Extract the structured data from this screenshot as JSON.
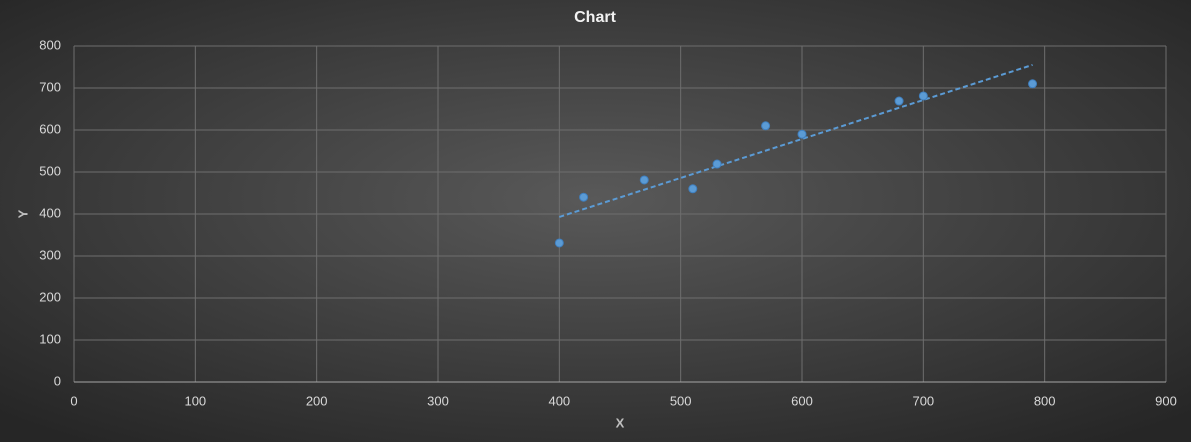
{
  "chart_data": {
    "type": "scatter",
    "title": "Chart",
    "x_label": "X",
    "y_label": "Y",
    "x": [
      400,
      420,
      470,
      510,
      530,
      570,
      600,
      680,
      700,
      790
    ],
    "series": [
      {
        "color": "#5b9bd5",
        "values": [
          331,
          440,
          481,
          460,
          519,
          610,
          590,
          669,
          681,
          710
        ]
      }
    ],
    "trendline": {
      "x": [
        400,
        790
      ],
      "values": [
        393,
        755
      ],
      "color": "#5b9bd5",
      "dashed": true
    },
    "xlim": [
      0,
      900
    ],
    "xticks": [
      0,
      100,
      200,
      300,
      400,
      500,
      600,
      700,
      800,
      900
    ],
    "ylim": [
      0,
      800
    ],
    "yticks": [
      0,
      100,
      200,
      300,
      400,
      500,
      600,
      700,
      800
    ],
    "grid": true
  }
}
